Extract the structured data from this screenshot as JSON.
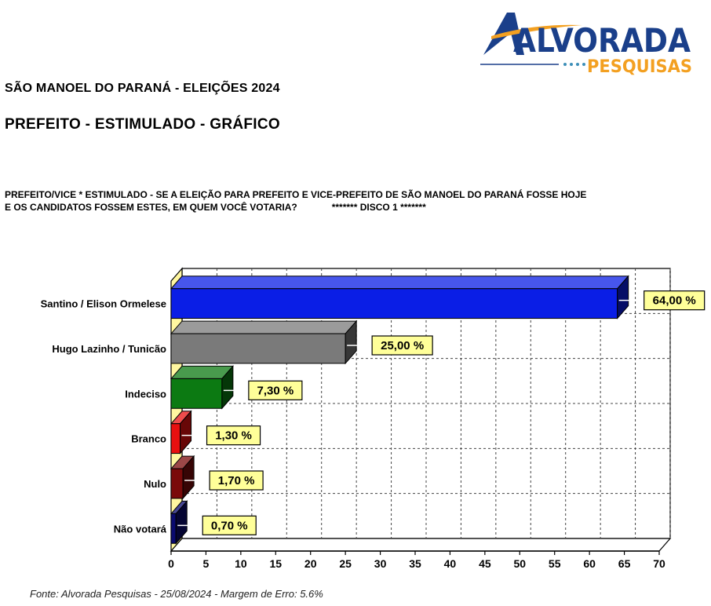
{
  "brand": {
    "name_main": "ALVORADA",
    "name_sub": "PESQUISAS",
    "colors": {
      "navy": "#1a3f8a",
      "orange": "#f3a021",
      "teal": "#3d8fb8"
    }
  },
  "header": {
    "title": "SÃO MANOEL DO PARANÁ - ELEIÇÕES 2024",
    "subtitle": "PREFEITO - ESTIMULADO - GRÁFICO"
  },
  "question": {
    "line1": "PREFEITO/VICE * ESTIMULADO - SE A ELEIÇÃO PARA PREFEITO E VICE-PREFEITO DE SÃO MANOEL DO PARANÁ FOSSE HOJE",
    "line2": "E OS CANDIDATOS FOSSEM ESTES, EM QUEM VOCÊ VOTARIA?",
    "disco": "******* DISCO 1 *******"
  },
  "chart_data": {
    "type": "bar",
    "orientation": "horizontal",
    "categories": [
      "Santino / Elison Ormelese",
      "Hugo Lazinho / Tunicão",
      "Indeciso",
      "Branco",
      "Nulo",
      "Não votará"
    ],
    "values": [
      64.0,
      25.0,
      7.3,
      1.3,
      1.7,
      0.7
    ],
    "value_labels": [
      "64,00 %",
      "25,00 %",
      "7,30 %",
      "1,30 %",
      "1,70 %",
      "0,70 %"
    ],
    "colors": [
      "#0a1ee6",
      "#7a7a7a",
      "#0c7a12",
      "#e81010",
      "#7a0a0a",
      "#0a0a70"
    ],
    "xlim": [
      0,
      70
    ],
    "xticks": [
      0,
      5,
      10,
      15,
      20,
      25,
      30,
      35,
      40,
      45,
      50,
      55,
      60,
      65,
      70
    ],
    "grid": true,
    "label_box_color": "#ffff99",
    "wall_color": "#fff7a0"
  },
  "footer": {
    "source": "Fonte: Alvorada Pesquisas - 25/08/2024 - Margem de Erro: 5.6%"
  }
}
